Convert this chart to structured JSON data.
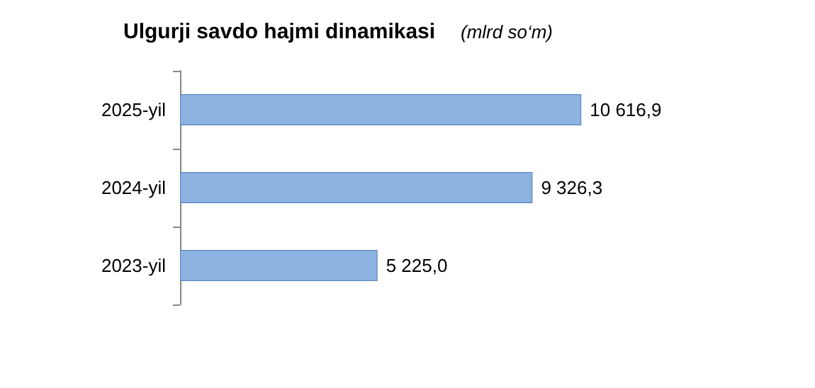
{
  "chart_data": {
    "type": "bar",
    "orientation": "horizontal",
    "title": "Ulgurji savdo hajmi dinamikasi",
    "subtitle": "(mlrd so‘m)",
    "categories": [
      "2025-yil",
      "2024-yil",
      "2023-yil"
    ],
    "values": [
      10616.9,
      9326.3,
      5225.0
    ],
    "value_labels": [
      "10 616,9",
      "9 326,3",
      "5 225,0"
    ],
    "color": "#8db3e2"
  }
}
